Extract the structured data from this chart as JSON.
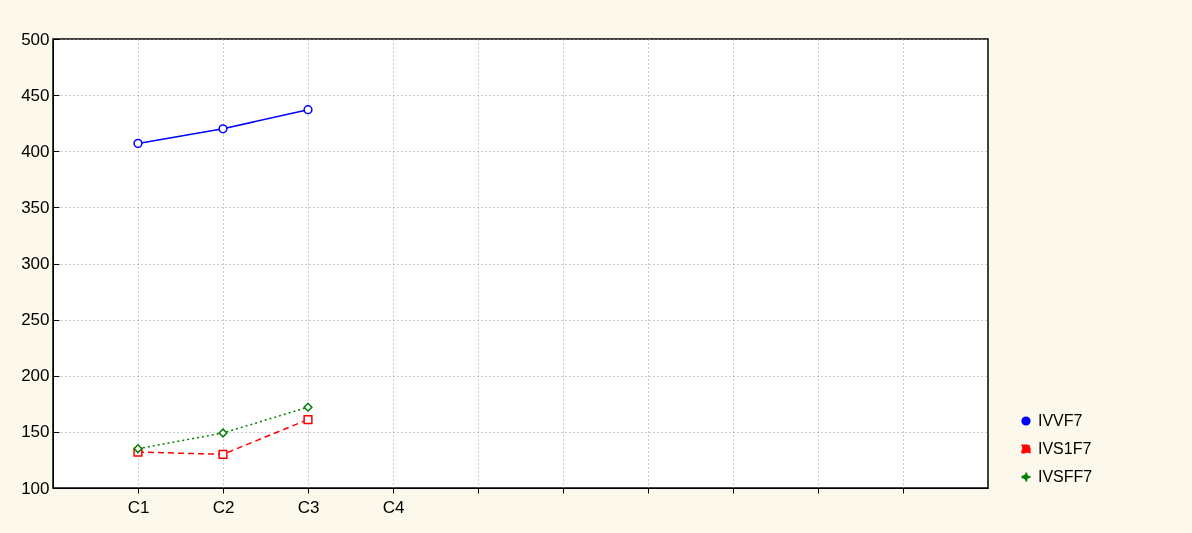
{
  "chart_data": {
    "type": "line",
    "categories": [
      "C1",
      "C2",
      "C3",
      "C4",
      null,
      null,
      null,
      null,
      null,
      null
    ],
    "series": [
      {
        "name": "IVVF7",
        "color": "#0000ff",
        "values": [
          407,
          420,
          437,
          null,
          null,
          null,
          null,
          null,
          null,
          null
        ],
        "marker": "circle",
        "line_style": "solid"
      },
      {
        "name": "IVS1F7",
        "color": "#ff0000",
        "values": [
          132,
          130,
          161,
          null,
          null,
          null,
          null,
          null,
          null,
          null
        ],
        "marker": "square",
        "line_style": "dashed"
      },
      {
        "name": "IVSFF7",
        "color": "#008000",
        "values": [
          135,
          149,
          172,
          null,
          null,
          null,
          null,
          null,
          null,
          null
        ],
        "marker": "diamond",
        "line_style": "dotted"
      }
    ],
    "ylim": [
      100,
      500
    ],
    "yticks": [
      100,
      150,
      200,
      250,
      300,
      350,
      400,
      450,
      500
    ],
    "grid": true,
    "legend": "bottom right"
  }
}
